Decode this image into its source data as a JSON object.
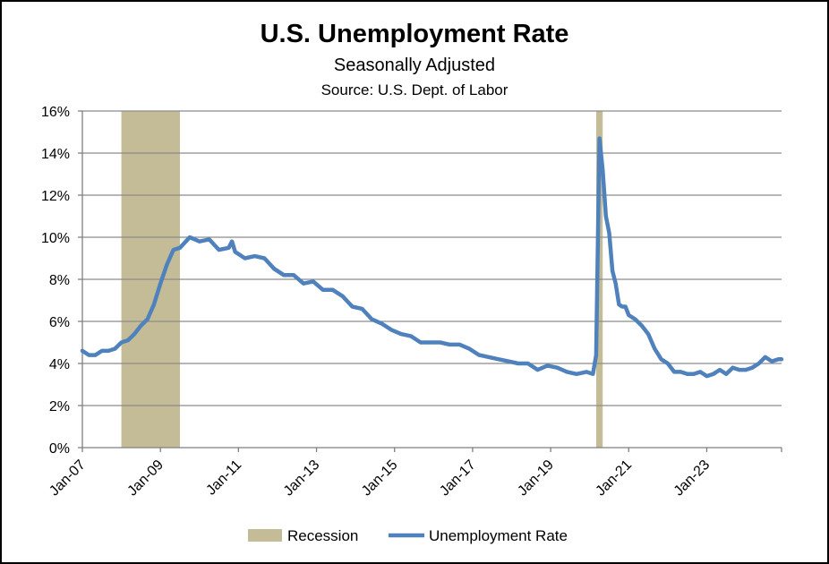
{
  "chart_data": {
    "type": "line",
    "title": "U.S. Unemployment Rate",
    "subtitle": "Seasonally Adjusted",
    "source": "Source:  U.S. Dept. of Labor",
    "ylim": [
      0,
      16
    ],
    "xlim": [
      "2007-01",
      "2024-12"
    ],
    "y_ticks": [
      0,
      2,
      4,
      6,
      8,
      10,
      12,
      14,
      16
    ],
    "y_tick_labels": [
      "0%",
      "2%",
      "4%",
      "6%",
      "8%",
      "10%",
      "12%",
      "14%",
      "16%"
    ],
    "x_ticks": [
      "2007-01",
      "2009-01",
      "2011-01",
      "2013-01",
      "2015-01",
      "2017-01",
      "2019-01",
      "2021-01",
      "2023-01"
    ],
    "x_tick_labels": [
      "Jan-07",
      "Jan-09",
      "Jan-11",
      "Jan-13",
      "Jan-15",
      "Jan-17",
      "Jan-19",
      "Jan-21",
      "Jan-23"
    ],
    "grid": true,
    "legend_placement": "bottom",
    "recessions": [
      {
        "start": "2008-01",
        "end": "2009-06"
      },
      {
        "start": "2020-03",
        "end": "2020-04"
      }
    ],
    "series": [
      {
        "name": "Unemployment Rate",
        "color": "#4F81BD",
        "points": [
          [
            "2007-01",
            4.6
          ],
          [
            "2007-03",
            4.4
          ],
          [
            "2007-05",
            4.4
          ],
          [
            "2007-07",
            4.6
          ],
          [
            "2007-09",
            4.6
          ],
          [
            "2007-11",
            4.7
          ],
          [
            "2008-01",
            5.0
          ],
          [
            "2008-03",
            5.1
          ],
          [
            "2008-05",
            5.4
          ],
          [
            "2008-07",
            5.8
          ],
          [
            "2008-09",
            6.1
          ],
          [
            "2008-11",
            6.8
          ],
          [
            "2009-01",
            7.8
          ],
          [
            "2009-03",
            8.7
          ],
          [
            "2009-05",
            9.4
          ],
          [
            "2009-07",
            9.5
          ],
          [
            "2009-10",
            10.0
          ],
          [
            "2010-01",
            9.8
          ],
          [
            "2010-04",
            9.9
          ],
          [
            "2010-07",
            9.4
          ],
          [
            "2010-10",
            9.5
          ],
          [
            "2010-11",
            9.8
          ],
          [
            "2010-12",
            9.3
          ],
          [
            "2011-03",
            9.0
          ],
          [
            "2011-06",
            9.1
          ],
          [
            "2011-09",
            9.0
          ],
          [
            "2011-12",
            8.5
          ],
          [
            "2012-03",
            8.2
          ],
          [
            "2012-06",
            8.2
          ],
          [
            "2012-09",
            7.8
          ],
          [
            "2012-12",
            7.9
          ],
          [
            "2013-03",
            7.5
          ],
          [
            "2013-06",
            7.5
          ],
          [
            "2013-09",
            7.2
          ],
          [
            "2013-12",
            6.7
          ],
          [
            "2014-03",
            6.6
          ],
          [
            "2014-06",
            6.1
          ],
          [
            "2014-09",
            5.9
          ],
          [
            "2014-12",
            5.6
          ],
          [
            "2015-03",
            5.4
          ],
          [
            "2015-06",
            5.3
          ],
          [
            "2015-09",
            5.0
          ],
          [
            "2015-12",
            5.0
          ],
          [
            "2016-03",
            5.0
          ],
          [
            "2016-06",
            4.9
          ],
          [
            "2016-09",
            4.9
          ],
          [
            "2016-12",
            4.7
          ],
          [
            "2017-03",
            4.4
          ],
          [
            "2017-06",
            4.3
          ],
          [
            "2017-09",
            4.2
          ],
          [
            "2017-12",
            4.1
          ],
          [
            "2018-03",
            4.0
          ],
          [
            "2018-06",
            4.0
          ],
          [
            "2018-09",
            3.7
          ],
          [
            "2018-12",
            3.9
          ],
          [
            "2019-03",
            3.8
          ],
          [
            "2019-06",
            3.6
          ],
          [
            "2019-09",
            3.5
          ],
          [
            "2019-12",
            3.6
          ],
          [
            "2020-02",
            3.5
          ],
          [
            "2020-03",
            4.4
          ],
          [
            "2020-04",
            14.7
          ],
          [
            "2020-05",
            13.2
          ],
          [
            "2020-06",
            11.0
          ],
          [
            "2020-07",
            10.2
          ],
          [
            "2020-08",
            8.4
          ],
          [
            "2020-09",
            7.8
          ],
          [
            "2020-10",
            6.8
          ],
          [
            "2020-11",
            6.7
          ],
          [
            "2020-12",
            6.7
          ],
          [
            "2021-01",
            6.3
          ],
          [
            "2021-03",
            6.1
          ],
          [
            "2021-05",
            5.8
          ],
          [
            "2021-07",
            5.4
          ],
          [
            "2021-09",
            4.7
          ],
          [
            "2021-11",
            4.2
          ],
          [
            "2022-01",
            4.0
          ],
          [
            "2022-03",
            3.6
          ],
          [
            "2022-05",
            3.6
          ],
          [
            "2022-07",
            3.5
          ],
          [
            "2022-09",
            3.5
          ],
          [
            "2022-11",
            3.6
          ],
          [
            "2023-01",
            3.4
          ],
          [
            "2023-03",
            3.5
          ],
          [
            "2023-05",
            3.7
          ],
          [
            "2023-07",
            3.5
          ],
          [
            "2023-09",
            3.8
          ],
          [
            "2023-11",
            3.7
          ],
          [
            "2024-01",
            3.7
          ],
          [
            "2024-03",
            3.8
          ],
          [
            "2024-05",
            4.0
          ],
          [
            "2024-07",
            4.3
          ],
          [
            "2024-09",
            4.1
          ],
          [
            "2024-11",
            4.2
          ],
          [
            "2024-12",
            4.2
          ]
        ]
      }
    ],
    "legend": [
      {
        "label": "Recession",
        "kind": "area",
        "color": "#C4BC96"
      },
      {
        "label": "Unemployment Rate",
        "kind": "line",
        "color": "#4F81BD"
      }
    ]
  }
}
